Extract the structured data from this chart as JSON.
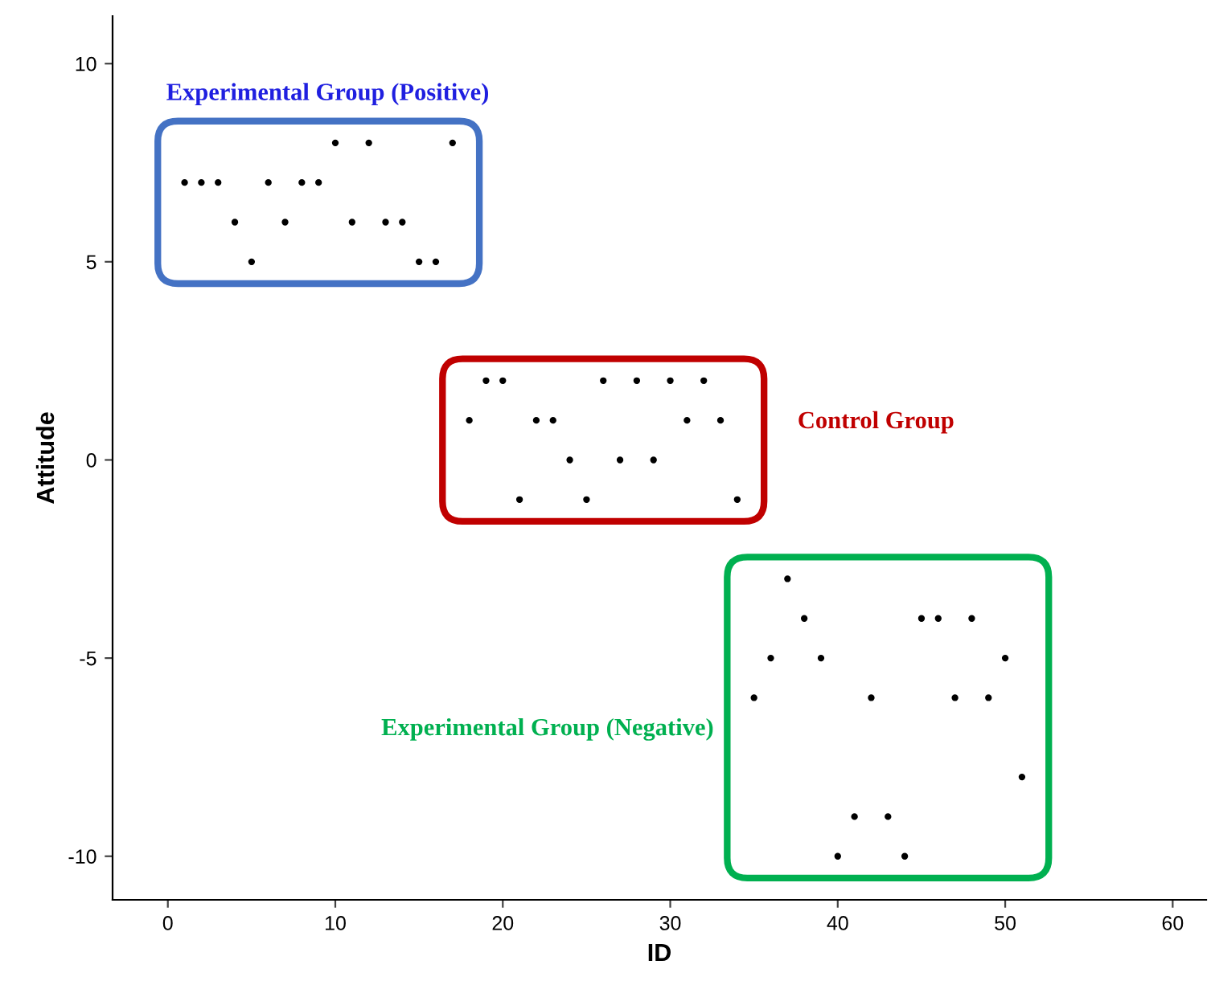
{
  "chart_data": {
    "type": "scatter",
    "xlabel": "ID",
    "ylabel": "Attitude",
    "xlim": [
      -3.3,
      62
    ],
    "ylim": [
      -11.1,
      11.2
    ],
    "xticks": [
      0,
      10,
      20,
      30,
      40,
      50,
      60
    ],
    "yticks": [
      -10,
      -5,
      0,
      5,
      10
    ],
    "grid": false,
    "legend": false,
    "marker": "circle",
    "annotations": [
      "Experimental Group (Positive)",
      "Control Group",
      "Experimental Group (Negative)"
    ],
    "series": [
      {
        "color": "#000000",
        "x": [
          1,
          2,
          3,
          4,
          5,
          6,
          7,
          8,
          9,
          10,
          11,
          12,
          13,
          14,
          15,
          16,
          17
        ],
        "values": [
          7,
          7,
          7,
          6,
          5,
          7,
          6,
          7,
          7,
          8,
          6,
          8,
          6,
          6,
          5,
          5,
          8
        ]
      },
      {
        "color": "#000000",
        "x": [
          18,
          19,
          20,
          21,
          22,
          23,
          24,
          25,
          26,
          27,
          28,
          29,
          30,
          31,
          32,
          33,
          34
        ],
        "values": [
          1,
          2,
          2,
          -1,
          1,
          1,
          0,
          -1,
          2,
          0,
          2,
          0,
          2,
          1,
          2,
          1,
          -1
        ]
      },
      {
        "color": "#000000",
        "x": [
          35,
          36,
          37,
          38,
          39,
          40,
          41,
          42,
          43,
          44,
          45,
          46,
          47,
          48,
          49,
          50,
          51
        ],
        "values": [
          -6,
          -5,
          -3,
          -4,
          -5,
          -10,
          -9,
          -6,
          -9,
          -10,
          -4,
          -4,
          -6,
          -4,
          -6,
          -5,
          -8
        ]
      }
    ]
  }
}
